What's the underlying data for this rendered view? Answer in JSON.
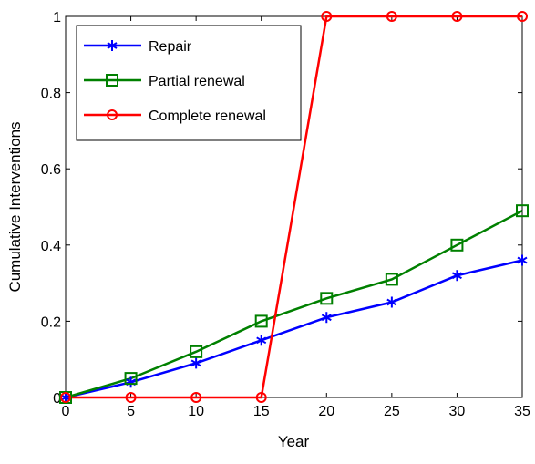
{
  "chart_data": {
    "type": "line",
    "xlabel": "Year",
    "ylabel": "Cumulative Interventions",
    "x": [
      0,
      5,
      10,
      15,
      20,
      25,
      30,
      35
    ],
    "xlim": [
      0,
      35
    ],
    "ylim": [
      0,
      1
    ],
    "xticks": [
      "0",
      "5",
      "10",
      "15",
      "20",
      "25",
      "30",
      "35"
    ],
    "yticks": [
      "0",
      "0.2",
      "0.4",
      "0.6",
      "0.8",
      "1"
    ],
    "grid": false,
    "legend_position": "top-left",
    "series": [
      {
        "name": "Repair",
        "color": "#0000ff",
        "marker": "star",
        "values": [
          0,
          0.04,
          0.09,
          0.15,
          0.21,
          0.25,
          0.32,
          0.36
        ]
      },
      {
        "name": "Partial renewal",
        "color": "#008000",
        "marker": "square",
        "values": [
          0,
          0.05,
          0.12,
          0.2,
          0.26,
          0.31,
          0.4,
          0.49
        ]
      },
      {
        "name": "Complete renewal",
        "color": "#ff0000",
        "marker": "circle",
        "values": [
          0,
          0,
          0,
          0,
          1,
          1,
          1,
          1
        ]
      }
    ]
  }
}
